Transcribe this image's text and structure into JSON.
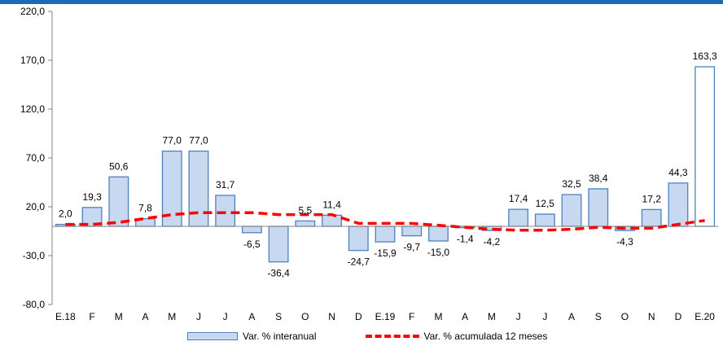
{
  "chart_data": {
    "type": "bar",
    "categories": [
      "E.18",
      "F",
      "M",
      "A",
      "M",
      "J",
      "J",
      "A",
      "S",
      "O",
      "N",
      "D",
      "E.19",
      "F",
      "M",
      "A",
      "M",
      "J",
      "J",
      "A",
      "S",
      "O",
      "N",
      "D",
      "E.20"
    ],
    "series": [
      {
        "name": "Var. % interanual",
        "type": "bar",
        "values": [
          2.0,
          19.3,
          50.6,
          7.8,
          77.0,
          77.0,
          31.7,
          -6.5,
          -36.4,
          5.5,
          11.4,
          -24.7,
          -15.9,
          -9.7,
          -15.0,
          -1.4,
          -4.2,
          17.4,
          12.5,
          32.5,
          38.4,
          -4.3,
          17.2,
          44.3,
          163.3
        ],
        "labels": [
          "2,0",
          "19,3",
          "50,6",
          "7,8",
          "77,0",
          "77,0",
          "31,7",
          "-6,5",
          "-36,4",
          "5,5",
          "11,4",
          "-24,7",
          "-15,9",
          "-9,7",
          "-15,0",
          "-1,4",
          "-4,2",
          "17,4",
          "12,5",
          "32,5",
          "38,4",
          "-4,3",
          "17,2",
          "44,3",
          "163,3"
        ],
        "color": "#c6d9f1",
        "border": "#4f81bd"
      },
      {
        "name": "Var. % acumulada 12 meses",
        "type": "line",
        "style": "dashed",
        "values": [
          2.0,
          2.0,
          4.0,
          8.0,
          12.0,
          14.0,
          14.0,
          14.0,
          12.0,
          12.0,
          12.0,
          3.0,
          3.0,
          3.0,
          1.0,
          -1.0,
          -3.0,
          -4.0,
          -4.0,
          -3.0,
          -1.0,
          -2.0,
          -2.0,
          2.0,
          6.0
        ],
        "color": "#ff0000"
      }
    ],
    "yticks": [
      "220,0",
      "170,0",
      "120,0",
      "70,0",
      "20,0",
      "-30,0",
      "-80,0"
    ],
    "ylim": [
      -80,
      220
    ],
    "ytick_step": 50,
    "title": "",
    "xlabel": "",
    "ylabel": "",
    "legend_position": "bottom",
    "grid": false,
    "colors": {
      "accent_bar": "#1f6bb3"
    }
  },
  "legend": {
    "bar_label": "Var. % interanual",
    "line_label": "Var. % acumulada 12 meses"
  }
}
